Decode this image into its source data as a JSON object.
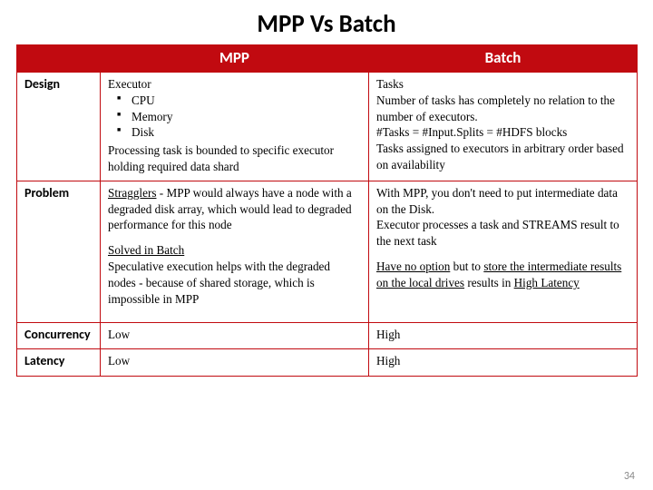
{
  "title": "MPP Vs Batch",
  "header": {
    "blank": "",
    "mpp": "MPP",
    "batch": "Batch"
  },
  "rows": {
    "design": {
      "label": "Design",
      "mpp_lead": "Executor",
      "mpp_b1": "CPU",
      "mpp_b2": "Memory",
      "mpp_b3": "Disk",
      "mpp_tail": "Processing task is bounded to specific executor holding required data shard",
      "batch_l1": "Tasks",
      "batch_l2": "Number of tasks has completely no relation to the number of executors.",
      "batch_l3": "#Tasks = #Input.Splits = #HDFS blocks",
      "batch_l4": "Tasks assigned to executors in arbitrary order based on availability"
    },
    "problem": {
      "label": "Problem",
      "mpp_p1_u": "Stragglers",
      "mpp_p1_rest": " - MPP would always have a node with a degraded disk array, which would lead to degraded performance for this node",
      "mpp_p2_u": "Solved in Batch",
      "mpp_p2_rest": "Speculative execution helps with the degraded nodes - because of shared storage, which is impossible in MPP",
      "batch_p1a": "With MPP, you don't need to put intermediate data on the Disk.",
      "batch_p1b": "Executor processes a task and STREAMS result to the next task",
      "batch_p2_a": "Have no option",
      "batch_p2_b": " but to ",
      "batch_p2_u1": "store the intermediate results on the local drives",
      "batch_p2_c": " results in ",
      "batch_p2_u2": "High Latency"
    },
    "concurrency": {
      "label": "Concurrency",
      "mpp": "Low",
      "batch": "High"
    },
    "latency": {
      "label": "Latency",
      "mpp": "Low",
      "batch": "High"
    }
  },
  "pagenum": "34",
  "colors": {
    "accent": "#c10a10",
    "bg": "#ffffff"
  }
}
